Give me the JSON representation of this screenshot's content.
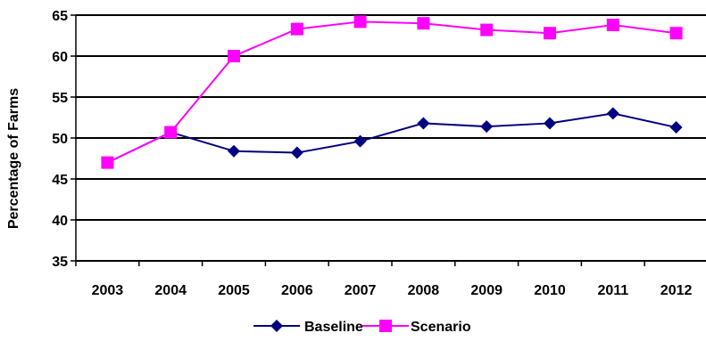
{
  "chart_data": {
    "type": "line",
    "title": "",
    "xlabel": "",
    "ylabel": "Percentage of Farms",
    "categories": [
      "2003",
      "2004",
      "2005",
      "2006",
      "2007",
      "2008",
      "2009",
      "2010",
      "2011",
      "2012"
    ],
    "ylim": [
      35,
      65
    ],
    "yticks": [
      35,
      40,
      45,
      50,
      55,
      60,
      65
    ],
    "grid": "horizontal",
    "legend_position": "bottom",
    "series": [
      {
        "name": "Baseline",
        "color": "#000080",
        "marker": "diamond",
        "values": [
          47.0,
          50.7,
          48.4,
          48.2,
          49.6,
          51.8,
          51.4,
          51.8,
          53.0,
          51.3
        ]
      },
      {
        "name": "Scenario",
        "color": "#FF00FF",
        "marker": "square",
        "values": [
          47.0,
          50.7,
          60.0,
          63.3,
          64.2,
          64.0,
          63.2,
          62.8,
          63.8,
          62.8
        ]
      }
    ]
  }
}
